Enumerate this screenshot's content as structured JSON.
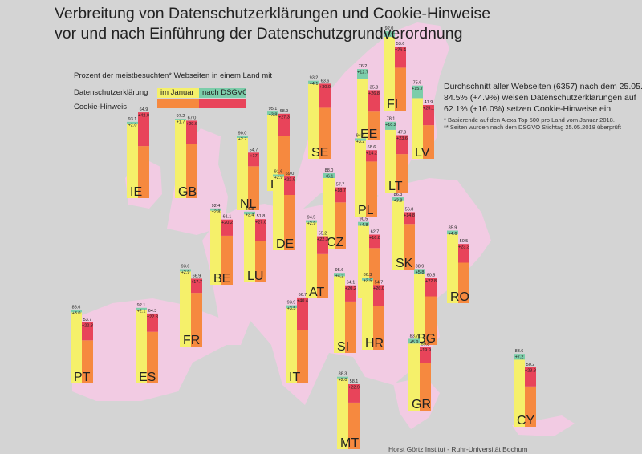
{
  "title_line1": "Verbreitung von Datenschutzerklärungen und Cookie-Hinweise",
  "title_line2": "vor und nach Einführung der Datenschutzgrundverordnung",
  "legend": {
    "heading": "Prozent der meistbesuchten* Webseiten in einem Land mit",
    "row1": "Datenschutzerklärung",
    "row2": "Cookie-Hinweis",
    "before": "im Januar",
    "after": "nach DSGVO"
  },
  "summary": {
    "line1": "Durchschnitt aller Webseiten (6357) nach dem 25.05.",
    "line2": "84.5% (+4.9%) weisen Datenschutzerklärungen auf",
    "line3": "62.1% (+16.0%) setzen Cookie-Hinweise ein",
    "note1": "* Basierende auf den Alexa Top 500 pro Land vom Januar 2018.",
    "note2": "** Seiten wurden nach dem DSGVO Stichtag 25.05.2018 überprüft"
  },
  "source": "Horst Görtz Institut - Ruhr-Universität Bochum",
  "colors": {
    "background": "#d4d4d4",
    "europe": "#f2cbe3",
    "privacy_before": "#f5f06a",
    "privacy_after": "#7ccdaa",
    "cookie_before": "#f6893f",
    "cookie_after": "#e8445a"
  },
  "chart_data": {
    "type": "bar",
    "ylim": [
      0,
      100
    ],
    "units": "%",
    "countries": [
      {
        "code": "FI",
        "privacy_jan": 92.0,
        "privacy_delta": "+6.9",
        "cookie_jan": 53.6,
        "cookie_delta": "+26.4"
      },
      {
        "code": "EE",
        "privacy_jan": 76.2,
        "privacy_delta": "+12.7",
        "cookie_jan": 35.8,
        "cookie_delta": "+26.8"
      },
      {
        "code": "LV",
        "privacy_jan": 75.6,
        "privacy_delta": "+15.7",
        "cookie_jan": 41.9,
        "cookie_delta": "+25.1"
      },
      {
        "code": "SE",
        "privacy_jan": 93.2,
        "privacy_delta": "+4.1",
        "cookie_jan": 63.6,
        "cookie_delta": "+30.0"
      },
      {
        "code": "DK",
        "privacy_jan": 95.1,
        "privacy_delta": "+3.8",
        "cookie_jan": 68.9,
        "cookie_delta": "+27.3"
      },
      {
        "code": "LT",
        "privacy_jan": 78.1,
        "privacy_delta": "+10.2",
        "cookie_jan": 47.9,
        "cookie_delta": "+23.6"
      },
      {
        "code": "IE",
        "privacy_jan": 93.1,
        "privacy_delta": "+2.0",
        "cookie_jan": 64.9,
        "cookie_delta": "+42.0"
      },
      {
        "code": "GB",
        "privacy_jan": 97.2,
        "privacy_delta": "+1.7",
        "cookie_jan": 67.0,
        "cookie_delta": "+29.6"
      },
      {
        "code": "NL",
        "privacy_jan": 90.0,
        "privacy_delta": "+2.7",
        "cookie_jan": 54.7,
        "cookie_delta": "+17"
      },
      {
        "code": "DE",
        "privacy_jan": 91.6,
        "privacy_delta": "+2.9",
        "cookie_jan": 69.0,
        "cookie_delta": "+22.9"
      },
      {
        "code": "PL",
        "privacy_jan": 94.4,
        "privacy_delta": "+3.2",
        "cookie_jan": 68.6,
        "cookie_delta": "+14.2"
      },
      {
        "code": "CZ",
        "privacy_jan": 88.0,
        "privacy_delta": "+6.1",
        "cookie_jan": 57.7,
        "cookie_delta": "+18.7"
      },
      {
        "code": "SK",
        "privacy_jan": 86.3,
        "privacy_delta": "+3.8",
        "cookie_jan": 56.8,
        "cookie_delta": "+14.8"
      },
      {
        "code": "BE",
        "privacy_jan": 92.4,
        "privacy_delta": "+2.8",
        "cookie_jan": 61.1,
        "cookie_delta": "+20.2"
      },
      {
        "code": "LU",
        "privacy_jan": 84.8,
        "privacy_delta": "+3.4",
        "cookie_jan": 51.8,
        "cookie_delta": "+27.0"
      },
      {
        "code": "AT",
        "privacy_jan": 94.5,
        "privacy_delta": "+2.9",
        "cookie_jan": 55.2,
        "cookie_delta": "+22.3"
      },
      {
        "code": "HU",
        "privacy_jan": 90.5,
        "privacy_delta": "+4.8",
        "cookie_jan": 62.7,
        "cookie_delta": "+16.8"
      },
      {
        "code": "RO",
        "privacy_jan": 85.9,
        "privacy_delta": "+4.6",
        "cookie_jan": 50.5,
        "cookie_delta": "+23.3"
      },
      {
        "code": "FR",
        "privacy_jan": 93.6,
        "privacy_delta": "+2.9",
        "cookie_jan": 66.9,
        "cookie_delta": "+17.7"
      },
      {
        "code": "SI",
        "privacy_jan": 95.6,
        "privacy_delta": "+4.2",
        "cookie_jan": 64.1,
        "cookie_delta": "+20.2"
      },
      {
        "code": "HR",
        "privacy_jan": 86.3,
        "privacy_delta": "+3.5",
        "cookie_jan": 54.7,
        "cookie_delta": "+26.0"
      },
      {
        "code": "BG",
        "privacy_jan": 88.9,
        "privacy_delta": "+5.8",
        "cookie_jan": 60.5,
        "cookie_delta": "+22.8"
      },
      {
        "code": "PT",
        "privacy_jan": 88.6,
        "privacy_delta": "+3.0",
        "cookie_jan": 53.7,
        "cookie_delta": "+22.3"
      },
      {
        "code": "ES",
        "privacy_jan": 92.1,
        "privacy_delta": "+2.1",
        "cookie_jan": 64.3,
        "cookie_delta": "+22.8"
      },
      {
        "code": "IT",
        "privacy_jan": 93.9,
        "privacy_delta": "+3.5",
        "cookie_jan": 66.7,
        "cookie_delta": "+40.4"
      },
      {
        "code": "GR",
        "privacy_jan": 83.7,
        "privacy_delta": "+5.9",
        "cookie_jan": 59.8,
        "cookie_delta": "+19.9"
      },
      {
        "code": "CY",
        "privacy_jan": 83.6,
        "privacy_delta": "+7.2",
        "cookie_jan": 50.2,
        "cookie_delta": "+23.8"
      },
      {
        "code": "MT",
        "privacy_jan": 88.3,
        "privacy_delta": "+2.0",
        "cookie_jan": 58.1,
        "cookie_delta": "+22.9"
      }
    ]
  }
}
